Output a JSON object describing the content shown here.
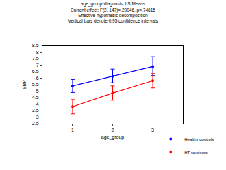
{
  "chart_data": {
    "type": "line",
    "title": [
      "age_group*diagnosis; LS Means",
      "Current effect: F(2, 147)=.29046, p=.74615",
      "Effective hypothesis decomposition",
      "Vertical bars denote 0.95 confidence intervals"
    ],
    "x_label": "age_group",
    "y_label": "SBP",
    "categories": [
      "1",
      "2",
      "3"
    ],
    "series": [
      {
        "name": "Healthy controls",
        "color": "#0000ff",
        "marker": "circle",
        "values": [
          5.4,
          6.15,
          6.9
        ],
        "ci_lower": [
          4.9,
          5.65,
          6.2
        ],
        "ci_upper": [
          5.9,
          6.7,
          7.65
        ]
      },
      {
        "name": "HT survivors",
        "color": "#ff0000",
        "marker": "circle",
        "values": [
          3.8,
          4.85,
          5.8
        ],
        "ci_lower": [
          3.25,
          4.3,
          5.25
        ],
        "ci_upper": [
          4.35,
          5.4,
          6.35
        ]
      }
    ],
    "ylim": [
      2.5,
      8.5
    ],
    "yticks": [
      2.5,
      3,
      3.5,
      4,
      4.5,
      5,
      5.5,
      6,
      6.5,
      7,
      7.5,
      8,
      8.5
    ],
    "grid": false,
    "legend": "lower right"
  }
}
